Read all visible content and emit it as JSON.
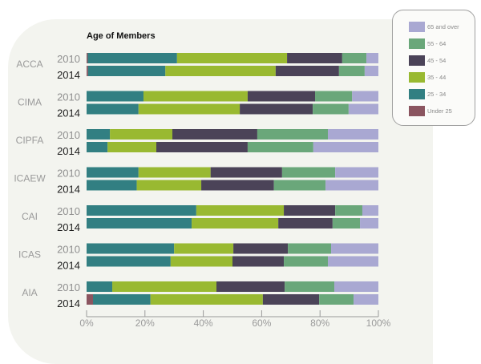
{
  "chart_data": {
    "type": "bar",
    "orientation": "horizontal",
    "stacked": true,
    "title": "Age of Members",
    "xlabel": "",
    "ylabel": "",
    "xlim": [
      0,
      100
    ],
    "x_ticks": [
      "0%",
      "20%",
      "40%",
      "60%",
      "80%",
      "100%"
    ],
    "grid": false,
    "legend_position": "top-right",
    "groups": [
      "ACCA",
      "CIMA",
      "CIPFA",
      "ICAEW",
      "CAI",
      "ICAS",
      "AIA"
    ],
    "years": [
      "2010",
      "2014"
    ],
    "series": [
      {
        "name": "Under 25",
        "color": "#8b5560",
        "values": {
          "ACCA": [
            0.4,
            0.5
          ],
          "CIMA": [
            0,
            0
          ],
          "CIPFA": [
            0,
            0
          ],
          "ICAEW": [
            0,
            0
          ],
          "CAI": [
            0,
            0
          ],
          "ICAS": [
            0,
            0
          ],
          "AIA": [
            0,
            2.2
          ]
        }
      },
      {
        "name": "25 - 34",
        "color": "#327f82",
        "values": {
          "ACCA": [
            30.6,
            26.5
          ],
          "CIMA": [
            19.5,
            17.8
          ],
          "CIPFA": [
            8.0,
            7.2
          ],
          "ICAEW": [
            17.8,
            17.2
          ],
          "CAI": [
            37.6,
            36.0
          ],
          "ICAS": [
            30.0,
            28.8
          ],
          "AIA": [
            8.8,
            19.7
          ]
        }
      },
      {
        "name": "35 - 44",
        "color": "#99b931",
        "values": {
          "ACCA": [
            37.7,
            37.8
          ],
          "CIMA": [
            35.7,
            34.7
          ],
          "CIPFA": [
            21.4,
            16.7
          ],
          "ICAEW": [
            24.7,
            22.1
          ],
          "CAI": [
            30.0,
            29.7
          ],
          "ICAS": [
            20.3,
            21.2
          ],
          "AIA": [
            35.7,
            38.5
          ]
        }
      },
      {
        "name": "45 - 54",
        "color": "#4b4358",
        "values": {
          "ACCA": [
            18.9,
            21.7
          ],
          "CIMA": [
            23.1,
            25.0
          ],
          "CIPFA": [
            29.1,
            31.3
          ],
          "ICAEW": [
            24.5,
            24.9
          ],
          "CAI": [
            17.6,
            18.6
          ],
          "ICAS": [
            18.7,
            17.6
          ],
          "AIA": [
            23.4,
            19.3
          ]
        }
      },
      {
        "name": "55 - 64",
        "color": "#6aa77a",
        "values": {
          "ACCA": [
            8.3,
            8.8
          ],
          "CIMA": [
            12.7,
            12.3
          ],
          "CIPFA": [
            24.2,
            22.5
          ],
          "ICAEW": [
            18.2,
            17.7
          ],
          "CAI": [
            9.3,
            9.4
          ],
          "ICAS": [
            14.8,
            15.1
          ],
          "AIA": [
            17.0,
            11.8
          ]
        }
      },
      {
        "name": "65 and over",
        "color": "#a9a8d2",
        "values": {
          "ACCA": [
            4.1,
            4.7
          ],
          "CIMA": [
            9.0,
            10.2
          ],
          "CIPFA": [
            17.3,
            22.3
          ],
          "ICAEW": [
            14.8,
            18.1
          ],
          "CAI": [
            5.5,
            6.3
          ],
          "ICAS": [
            16.2,
            17.3
          ],
          "AIA": [
            15.1,
            8.5
          ]
        }
      }
    ]
  },
  "legend": {
    "items": [
      {
        "label": "65 and over",
        "color": "#a9a8d2"
      },
      {
        "label": "55 - 64",
        "color": "#6aa77a"
      },
      {
        "label": "45 - 54",
        "color": "#4b4358"
      },
      {
        "label": "35 - 44",
        "color": "#99b931"
      },
      {
        "label": "25 - 34",
        "color": "#327f82"
      },
      {
        "label": "Under 25",
        "color": "#8b5560"
      }
    ]
  }
}
